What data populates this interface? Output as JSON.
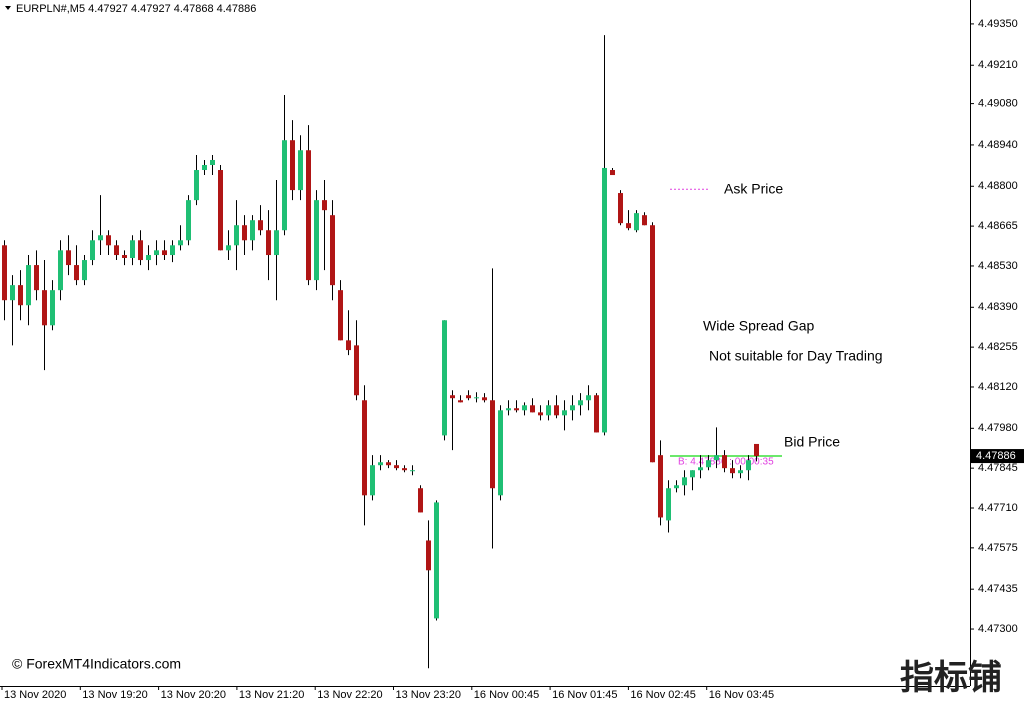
{
  "chart_data": {
    "type": "candlestick",
    "symbol": "EURPLN#,M5",
    "ylim": [
      4.47107,
      4.49431
    ],
    "yticks": [
      {
        "value": 4.4935,
        "label": "4.49350"
      },
      {
        "value": 4.4921,
        "label": "4.49210"
      },
      {
        "value": 4.4908,
        "label": "4.49080"
      },
      {
        "value": 4.4894,
        "label": "4.48940"
      },
      {
        "value": 4.488,
        "label": "4.48800"
      },
      {
        "value": 4.48665,
        "label": "4.48665"
      },
      {
        "value": 4.4853,
        "label": "4.48530"
      },
      {
        "value": 4.4839,
        "label": "4.48390"
      },
      {
        "value": 4.48255,
        "label": "4.48255"
      },
      {
        "value": 4.4812,
        "label": "4.48120"
      },
      {
        "value": 4.4798,
        "label": "4.47980"
      },
      {
        "value": 4.47845,
        "label": "4.47845"
      },
      {
        "value": 4.4771,
        "label": "4.47710"
      },
      {
        "value": 4.47575,
        "label": "4.47575"
      },
      {
        "value": 4.47435,
        "label": "4.47435"
      },
      {
        "value": 4.473,
        "label": "4.47300"
      }
    ],
    "x_labels": [
      "13 Nov 2020",
      "13 Nov 19:20",
      "13 Nov 20:20",
      "13 Nov 21:20",
      "13 Nov 22:20",
      "13 Nov 23:20",
      "16 Nov 00:45",
      "16 Nov 01:45",
      "16 Nov 02:45",
      "16 Nov 03:45"
    ],
    "up_color": "#1fbf74",
    "down_color": "#b01515",
    "current_price": 4.47886,
    "ask_level": 4.4879,
    "bid_level": 4.47886,
    "bid_info": "B: 4.47886 : 00:00:35",
    "annotations": [
      "Ask Price",
      "Wide Spread Gap",
      "Not suitable for Day Trading",
      "Bid Price"
    ],
    "copyright": "© ForexMT4Indicators.com",
    "watermark": "指标铺",
    "ohlc": [
      [
        4.486,
        4.48617,
        4.48346,
        4.48414
      ],
      [
        4.48414,
        4.48499,
        4.48261,
        4.48465
      ],
      [
        4.48465,
        4.48516,
        4.48346,
        4.48397
      ],
      [
        4.48397,
        4.48567,
        4.48329,
        4.48533
      ],
      [
        4.48533,
        4.48583,
        4.48414,
        4.48448
      ],
      [
        4.48448,
        4.4855,
        4.48177,
        4.48329
      ],
      [
        4.48329,
        4.48482,
        4.48312,
        4.48448
      ],
      [
        4.48448,
        4.48617,
        4.48414,
        4.48583
      ],
      [
        4.48583,
        4.48634,
        4.48499,
        4.48533
      ],
      [
        4.48533,
        4.486,
        4.48465,
        4.48482
      ],
      [
        4.48482,
        4.48567,
        4.48465,
        4.4855
      ],
      [
        4.4855,
        4.48651,
        4.48533,
        4.48617
      ],
      [
        4.48617,
        4.4877,
        4.48567,
        4.48634
      ],
      [
        4.48634,
        4.48651,
        4.48567,
        4.486
      ],
      [
        4.486,
        4.48617,
        4.4855,
        4.48567
      ],
      [
        4.48567,
        4.48583,
        4.48533,
        4.48557
      ],
      [
        4.48557,
        4.48634,
        4.48533,
        4.48617
      ],
      [
        4.48617,
        4.48651,
        4.48533,
        4.4855
      ],
      [
        4.4855,
        4.486,
        4.48516,
        4.48567
      ],
      [
        4.48567,
        4.48617,
        4.48533,
        4.48583
      ],
      [
        4.48583,
        4.48617,
        4.4855,
        4.48567
      ],
      [
        4.48567,
        4.48617,
        4.48543,
        4.486
      ],
      [
        4.486,
        4.48668,
        4.48583,
        4.48617
      ],
      [
        4.48617,
        4.4877,
        4.486,
        4.48753
      ],
      [
        4.48753,
        4.48906,
        4.48736,
        4.48855
      ],
      [
        4.48855,
        4.48889,
        4.48838,
        4.48872
      ],
      [
        4.48872,
        4.48906,
        4.48838,
        4.48889
      ],
      [
        4.48855,
        4.48872,
        4.48583,
        4.48583
      ],
      [
        4.48583,
        4.48651,
        4.4855,
        4.486
      ],
      [
        4.486,
        4.48753,
        4.48516,
        4.48668
      ],
      [
        4.48668,
        4.48702,
        4.48567,
        4.48617
      ],
      [
        4.48617,
        4.48702,
        4.48583,
        4.48685
      ],
      [
        4.48685,
        4.48736,
        4.48634,
        4.48651
      ],
      [
        4.48651,
        4.48719,
        4.48482,
        4.48567
      ],
      [
        4.48567,
        4.48821,
        4.48414,
        4.48651
      ],
      [
        4.48651,
        4.49109,
        4.48634,
        4.48956
      ],
      [
        4.48956,
        4.49024,
        4.48753,
        4.48787
      ],
      [
        4.48787,
        4.48973,
        4.48753,
        4.48922
      ],
      [
        4.48922,
        4.49007,
        4.48465,
        4.48482
      ],
      [
        4.48482,
        4.48787,
        4.48448,
        4.48753
      ],
      [
        4.48753,
        4.48821,
        4.48516,
        4.48719
      ],
      [
        4.48702,
        4.48753,
        4.48414,
        4.48465
      ],
      [
        4.48448,
        4.48482,
        4.48278,
        4.48278
      ],
      [
        4.48278,
        4.4838,
        4.48228,
        4.48245
      ],
      [
        4.48261,
        4.48346,
        4.48075,
        4.48092
      ],
      [
        4.48075,
        4.48126,
        4.47651,
        4.47753
      ],
      [
        4.47753,
        4.47889,
        4.47736,
        4.47855
      ],
      [
        4.47855,
        4.47889,
        4.47838,
        4.47865
      ],
      [
        4.47865,
        4.47872,
        4.47845,
        4.47855
      ],
      [
        4.47855,
        4.47872,
        4.47838,
        4.47845
      ],
      [
        4.47845,
        4.47855,
        4.47831,
        4.47838
      ],
      [
        4.47838,
        4.47855,
        4.47821,
        4.47838
      ],
      [
        4.47777,
        4.47787,
        4.47695,
        4.47695
      ],
      [
        4.476,
        4.47668,
        4.47167,
        4.47499
      ],
      [
        4.47336,
        4.47736,
        4.47329,
        4.47729
      ],
      [
        4.47956,
        4.48346,
        4.47939,
        4.48346
      ],
      [
        4.48092,
        4.48109,
        4.47906,
        4.48082
      ],
      [
        4.48075,
        4.48092,
        4.48068,
        4.48068
      ],
      [
        4.48092,
        4.48109,
        4.48075,
        4.48082
      ],
      [
        4.48082,
        4.48102,
        4.48068,
        4.48085
      ],
      [
        4.48085,
        4.48099,
        4.48068,
        4.48075
      ],
      [
        4.48075,
        4.48522,
        4.47573,
        4.47777
      ],
      [
        4.47753,
        4.48058,
        4.47736,
        4.48041
      ],
      [
        4.48041,
        4.48075,
        4.48024,
        4.48048
      ],
      [
        4.48048,
        4.48075,
        4.48034,
        4.48041
      ],
      [
        4.48041,
        4.48068,
        4.48024,
        4.48058
      ],
      [
        4.48058,
        4.48082,
        4.48034,
        4.48034
      ],
      [
        4.48034,
        4.48058,
        4.48007,
        4.48024
      ],
      [
        4.48024,
        4.48075,
        4.48007,
        4.48058
      ],
      [
        4.48058,
        4.48092,
        4.48014,
        4.48024
      ],
      [
        4.48024,
        4.48075,
        4.47973,
        4.48041
      ],
      [
        4.48041,
        4.48092,
        4.48007,
        4.48058
      ],
      [
        4.48058,
        4.48099,
        4.48024,
        4.48075
      ],
      [
        4.48075,
        4.48126,
        4.48041,
        4.48092
      ],
      [
        4.48092,
        4.48099,
        4.47966,
        4.47966
      ],
      [
        4.47966,
        4.49312,
        4.47956,
        4.48862
      ],
      [
        4.48855,
        4.48862,
        4.48838,
        4.48838
      ],
      [
        4.48777,
        4.48787,
        4.48668,
        4.48675
      ],
      [
        4.48675,
        4.48719,
        4.48651,
        4.48658
      ],
      [
        4.48651,
        4.48719,
        4.48644,
        4.48709
      ],
      [
        4.48702,
        4.48712,
        4.48668,
        4.48668
      ],
      [
        4.48668,
        4.48678,
        4.47865,
        4.47865
      ],
      [
        4.47889,
        4.47939,
        4.47651,
        4.47678
      ],
      [
        4.47668,
        4.47804,
        4.47627,
        4.47777
      ],
      [
        4.47777,
        4.47804,
        4.47763,
        4.47787
      ],
      [
        4.47787,
        4.47838,
        4.47753,
        4.47814
      ],
      [
        4.47814,
        4.47838,
        4.4777,
        4.47838
      ],
      [
        4.47838,
        4.47889,
        4.47811,
        4.47848
      ],
      [
        4.47848,
        4.47889,
        4.47838,
        4.47872
      ],
      [
        4.47872,
        4.47983,
        4.47845,
        4.47889
      ],
      [
        4.47889,
        4.47906,
        4.47831,
        4.47845
      ],
      [
        4.47845,
        4.47872,
        4.47811,
        4.47828
      ],
      [
        4.47828,
        4.47855,
        4.47811,
        4.47838
      ],
      [
        4.47838,
        4.47889,
        4.47804,
        4.47872
      ],
      [
        4.47927,
        4.47927,
        4.47868,
        4.47886
      ]
    ]
  }
}
